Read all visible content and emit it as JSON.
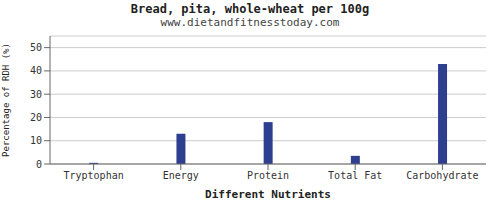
{
  "chart_data": {
    "type": "bar",
    "title": "Bread, pita, whole-wheat per 100g",
    "subtitle": "www.dietandfitnesstoday.com",
    "xlabel": "Different Nutrients",
    "ylabel": "Percentage of RDH (%)",
    "categories": [
      "Tryptophan",
      "Energy",
      "Protein",
      "Total Fat",
      "Carbohydrate"
    ],
    "values": [
      0.5,
      13,
      18,
      3.5,
      43
    ],
    "color": "#2e3f8f",
    "ylim": [
      0,
      55
    ],
    "yticks": [
      0,
      10,
      20,
      30,
      40,
      50
    ],
    "grid": true
  }
}
